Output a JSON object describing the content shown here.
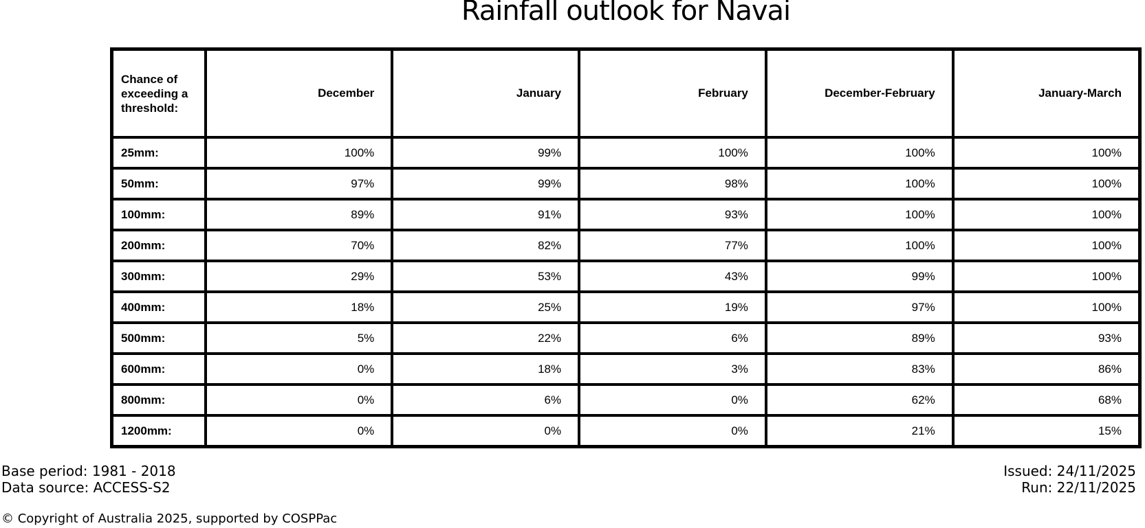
{
  "title": "Rainfall outlook for Navai",
  "table": {
    "corner_label": "Chance of exceeding a threshold:",
    "columns": [
      "December",
      "January",
      "February",
      "December-February",
      "January-March"
    ],
    "rows": [
      {
        "label": "25mm:",
        "values": [
          "100%",
          "99%",
          "100%",
          "100%",
          "100%"
        ]
      },
      {
        "label": "50mm:",
        "values": [
          "97%",
          "99%",
          "98%",
          "100%",
          "100%"
        ]
      },
      {
        "label": "100mm:",
        "values": [
          "89%",
          "91%",
          "93%",
          "100%",
          "100%"
        ]
      },
      {
        "label": "200mm:",
        "values": [
          "70%",
          "82%",
          "77%",
          "100%",
          "100%"
        ]
      },
      {
        "label": "300mm:",
        "values": [
          "29%",
          "53%",
          "43%",
          "99%",
          "100%"
        ]
      },
      {
        "label": "400mm:",
        "values": [
          "18%",
          "25%",
          "19%",
          "97%",
          "100%"
        ]
      },
      {
        "label": "500mm:",
        "values": [
          "5%",
          "22%",
          "6%",
          "89%",
          "93%"
        ]
      },
      {
        "label": "600mm:",
        "values": [
          "0%",
          "18%",
          "3%",
          "83%",
          "86%"
        ]
      },
      {
        "label": "800mm:",
        "values": [
          "0%",
          "6%",
          "0%",
          "62%",
          "68%"
        ]
      },
      {
        "label": "1200mm:",
        "values": [
          "0%",
          "0%",
          "0%",
          "21%",
          "15%"
        ]
      }
    ]
  },
  "footer": {
    "base_period": "Base period: 1981 - 2018",
    "data_source": "Data source: ACCESS-S2",
    "issued": "Issued: 24/11/2025",
    "run": "Run: 22/11/2025",
    "copyright": "© Copyright of Australia 2025, supported by COSPPac"
  },
  "colors": {
    "background": "#ffffff",
    "text": "#000000",
    "border": "#000000"
  },
  "chart_data": {
    "type": "table",
    "title": "Rainfall outlook for Navai",
    "corner_label": "Chance of exceeding a threshold:",
    "columns": [
      "December",
      "January",
      "February",
      "December-February",
      "January-March"
    ],
    "row_labels": [
      "25mm",
      "50mm",
      "100mm",
      "200mm",
      "300mm",
      "400mm",
      "500mm",
      "600mm",
      "800mm",
      "1200mm"
    ],
    "values_percent": [
      [
        100,
        99,
        100,
        100,
        100
      ],
      [
        97,
        99,
        98,
        100,
        100
      ],
      [
        89,
        91,
        93,
        100,
        100
      ],
      [
        70,
        82,
        77,
        100,
        100
      ],
      [
        29,
        53,
        43,
        99,
        100
      ],
      [
        18,
        25,
        19,
        97,
        100
      ],
      [
        5,
        22,
        6,
        89,
        93
      ],
      [
        0,
        18,
        3,
        83,
        86
      ],
      [
        0,
        6,
        0,
        62,
        68
      ],
      [
        0,
        0,
        0,
        21,
        15
      ]
    ],
    "units": "% chance of exceeding threshold",
    "notes": [
      "Base period: 1981 - 2018",
      "Data source: ACCESS-S2",
      "Issued: 24/11/2025",
      "Run: 22/11/2025"
    ]
  }
}
